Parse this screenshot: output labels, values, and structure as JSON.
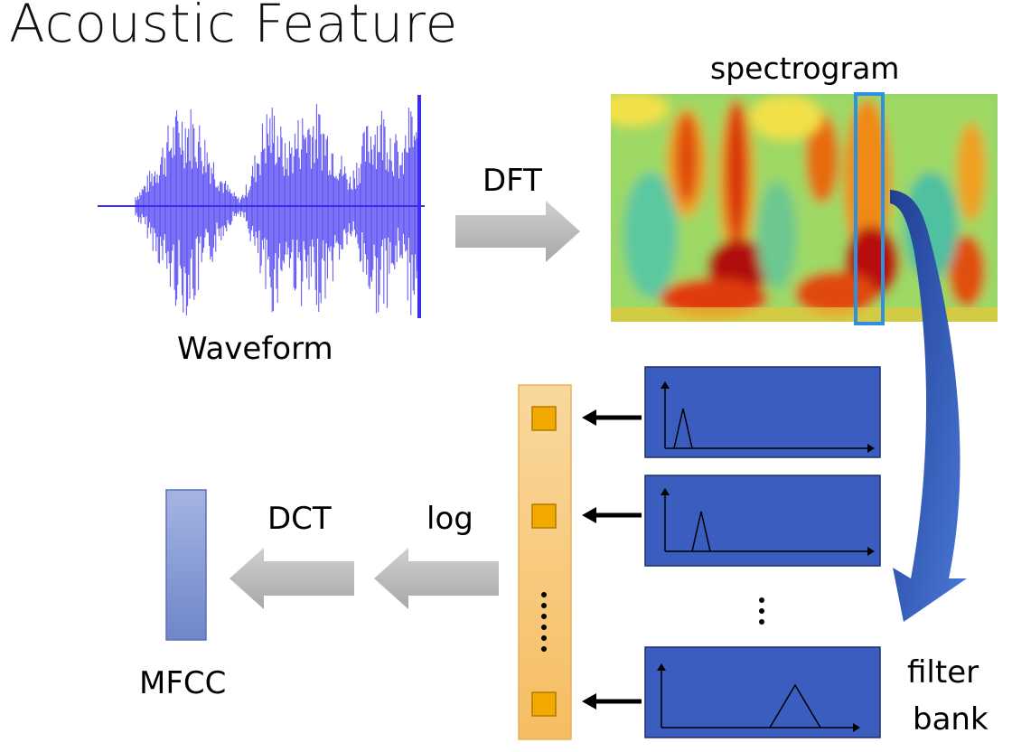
{
  "title": "Acoustic Feature",
  "labels": {
    "spectrogram": "spectrogram",
    "waveform": "Waveform",
    "dft": "DFT",
    "dct": "DCT",
    "log": "log",
    "mfcc": "MFCC",
    "filter": "filter",
    "bank": "bank",
    "vdots": "⋮",
    "dots": "⋮"
  },
  "colors": {
    "waveform": "#3b2ef0",
    "arrow_gray": "#b9b9b9",
    "filter_box": "#3a5dbf",
    "feature_column": "#f7c77a",
    "feature_square": "#f2a900",
    "mfcc_bar": "#8a9fd6",
    "frame_highlight": "#2f8fe0",
    "curved_arrow": "#2f56b4"
  },
  "filter_bank": {
    "filters_shown": 3,
    "triangle_centers": [
      0.15,
      0.2,
      0.62
    ]
  }
}
